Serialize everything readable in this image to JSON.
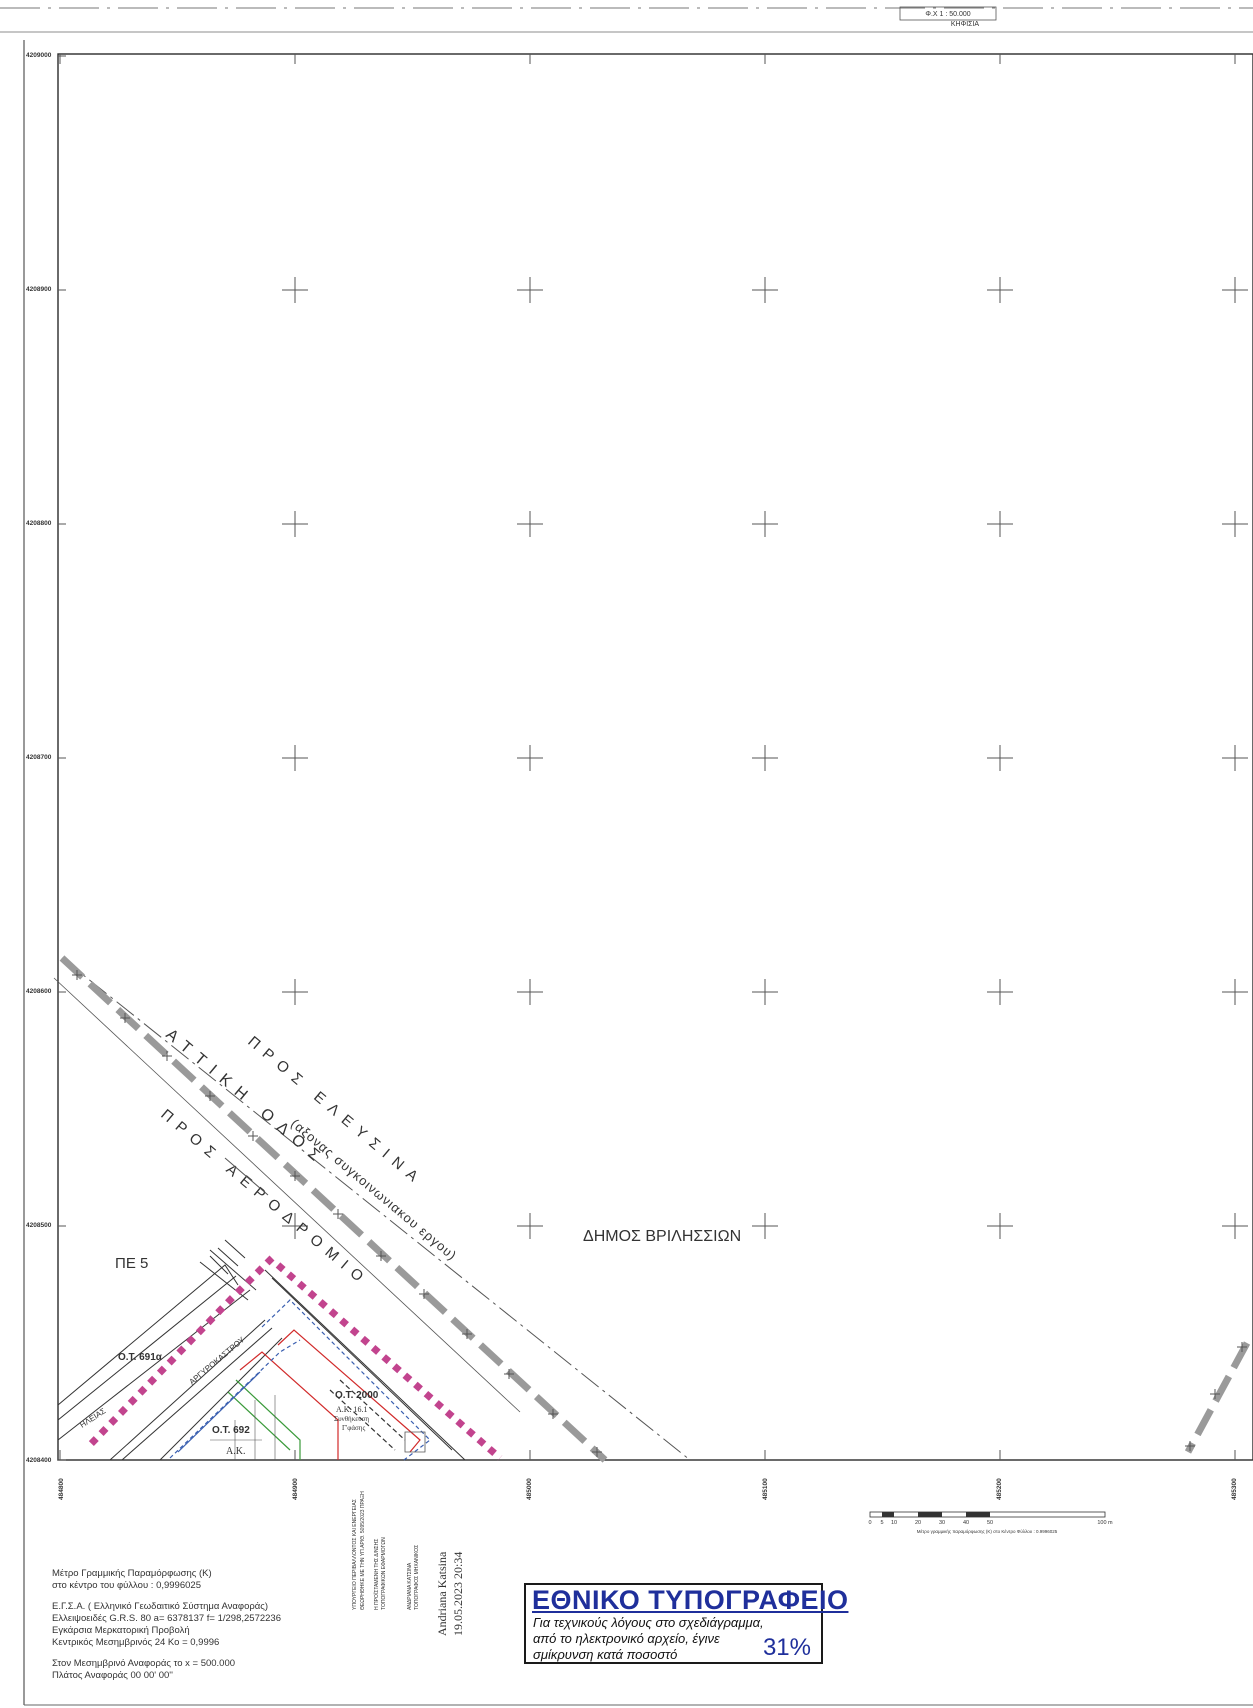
{
  "sheet": {
    "header_scale": "Φ.Χ  1 : 50.000",
    "header_name": "ΚΗΦΙΣΙΑ"
  },
  "grid": {
    "northing_labels": [
      "4209000",
      "4208900",
      "4208800",
      "4208700",
      "4208600",
      "4208500",
      "4208400"
    ],
    "easting_labels": [
      "484800",
      "484900",
      "485000",
      "485100",
      "485200",
      "485300"
    ]
  },
  "map_labels": {
    "attiki_odos": "ΑΤΤΙΚΗ ΟΔΟΣ",
    "axis_note": "(αξονας συγκοινωνιακου εργου)",
    "pros_elefsina": "ΠΡΟΣ ΕΛΕΥΣΙΝΑ",
    "pros_aerodromio": "ΠΡΟΣ ΑΕΡΟΔΡΟΜΙΟ",
    "dimos": "ΔΗΜΟΣ ΒΡΙΛΗΣΣΙΩΝ",
    "pe": "ΠΕ 5",
    "ot_691a": "Ο.Τ. 691α",
    "ot_692": "Ο.Τ. 692",
    "ot_2000": "Ο.Τ. 2000",
    "street_argyrokastrou": "ΑΡΓΥΡΟΚΑΣΤΡΟΥ",
    "street_ileias": "ΗΛΕΙΑΣ",
    "ak_16": "Α.Κ. 16.1",
    "ak_16_line2": "Συνθήκευση",
    "ak_16_line3": "Γ'φάσης",
    "ak": "Α.Κ."
  },
  "scale_bar": {
    "ticks": [
      "0",
      "5",
      "10",
      "20",
      "30",
      "40",
      "50",
      "100 m"
    ],
    "caption": "Μέτρο γραμμικής παραμόρφωσης (Κ) στο Κέντρο Φύλλου : 0.9996025"
  },
  "notes": {
    "line1": "Μέτρο Γραμμικής Παραμόρφωσης (Κ)",
    "line2": "στο κέντρο του φύλλου :   0,9996025",
    "line3": "Ε.Γ.Σ.Α. ( Ελληνικό Γεωδαιτικό Σύστημα Αναφοράς)",
    "line4": "Ελλειψοειδές G.R.S. 80 a= 6378137 f= 1/298,2572236",
    "line5": "Εγκάρσια Μερκατορική Προβολή",
    "line6": "Κεντρικός Μεσημβρινός 24 Κο = 0,9996",
    "line7": "Στον Μεσημβρινό Αναφοράς το x = 500.000",
    "line8": "Πλάτος Αναφοράς 00 00' 00''"
  },
  "vertical_notes": {
    "ministry_1": "ΥΠΟΥΡΓΕΙΟ ΠΕΡΙΒΑΛΛΟΝΤΟΣ ΚΑΙ ΕΝΕΡΓΕΙΑΣ",
    "ministry_2": "ΘΕΩΡΗΘΗΚΕ ΜΕ ΤΗΝ ΥΠ.ΑΡΙΘ. 5095/2023 ΠΡΑΞΗ",
    "ministry_3": "Η ΠΡΟΪΣΤΑΜΕΝΗ ΤΗΣ Δ/ΝΣΗΣ",
    "ministry_4": "ΤΟΠΟΓΡΑΦΙΚΩΝ ΕΦΑΡΜΟΓΩΝ",
    "engineer_1": "ΑΝΔΡΙΑΝΑ ΚΑΤΣΙΝΑ",
    "engineer_2": "ΤΟΠΟΓΡΑΦΟΣ ΜΗΧΑΝΙΚΟΣ",
    "signature_name": "Andriana Katsina",
    "signature_date": "19.05.2023 20:34"
  },
  "stamp": {
    "title": "ΕΘΝΙΚΟ ΤΥΠΟΓΡΑΦΕΙΟ",
    "line1": "Για τεχνικούς λόγους στο σχεδιάγραμμα,",
    "line2": "από το ηλεκτρονικό αρχείο, έγινε",
    "line3": "σμίκρυνση κατά ποσοστό",
    "percent": "31%"
  },
  "colors": {
    "stamp_blue": "#1f2f9b",
    "dash_magenta": "#c2448e",
    "road_grey": "#8e8e8e",
    "ot_red": "#d12a2a",
    "ot_green": "#3a9a3a",
    "ot_blue": "#3a5fb0"
  }
}
